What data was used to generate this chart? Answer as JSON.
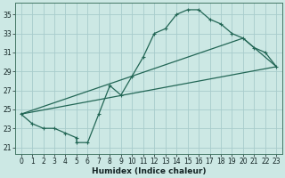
{
  "xlabel": "Humidex (Indice chaleur)",
  "background_color": "#cce8e4",
  "grid_color": "#a8cccc",
  "line_color": "#226655",
  "xlim": [
    -0.5,
    23.5
  ],
  "ylim": [
    20.3,
    36.2
  ],
  "xticks": [
    0,
    1,
    2,
    3,
    4,
    5,
    6,
    7,
    8,
    9,
    10,
    11,
    12,
    13,
    14,
    15,
    16,
    17,
    18,
    19,
    20,
    21,
    22,
    23
  ],
  "yticks": [
    21,
    23,
    25,
    27,
    29,
    31,
    33,
    35
  ],
  "line1_x": [
    0,
    1,
    2,
    3,
    4,
    5,
    5,
    6,
    7,
    8,
    9,
    10,
    11,
    12,
    13,
    14,
    15,
    16,
    17,
    18,
    19,
    20,
    21,
    22,
    23
  ],
  "line1_y": [
    24.5,
    23.5,
    23.0,
    23.0,
    22.5,
    22.0,
    21.5,
    21.5,
    24.5,
    27.5,
    26.5,
    28.5,
    30.5,
    33.0,
    33.5,
    35.0,
    35.5,
    35.5,
    34.5,
    34.0,
    33.0,
    32.5,
    31.5,
    31.0,
    29.5
  ],
  "line2_x": [
    0,
    23
  ],
  "line2_y": [
    24.5,
    29.5
  ],
  "line3_x": [
    0,
    20,
    23
  ],
  "line3_y": [
    24.5,
    32.5,
    29.5
  ]
}
